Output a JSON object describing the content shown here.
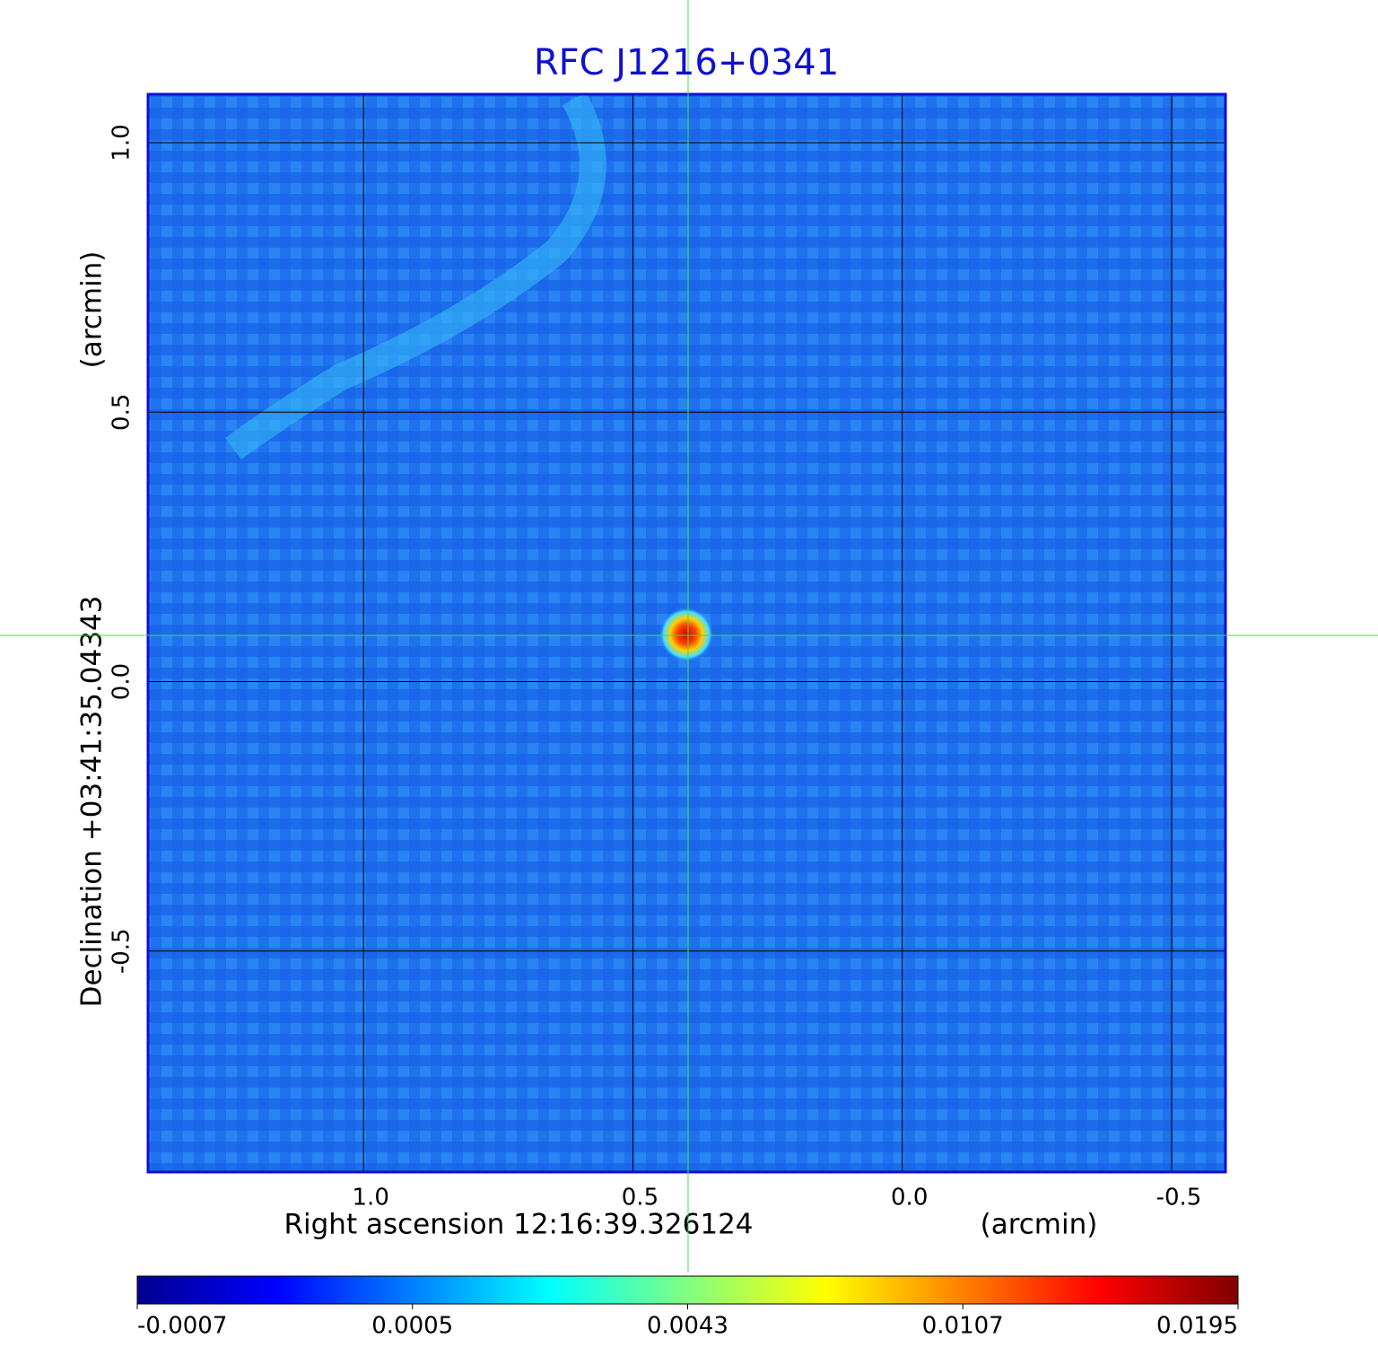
{
  "chart_data": {
    "type": "image",
    "title": "RFC J1216+0341",
    "xlabel": "Right ascension  12:16:39.326124",
    "xunit": "(arcmin)",
    "ylabel": "Declination  +03:41:35.04343",
    "yunit": "(arcmin)",
    "xlim": [
      1.4,
      -0.6
    ],
    "ylim": [
      -0.91,
      1.09
    ],
    "xticks": [
      {
        "value": 1,
        "label": "1.0"
      },
      0.5,
      {
        "value": 0,
        "label": "0.0"
      },
      -0.5
    ],
    "yticks": [
      {
        "value": 1,
        "label": "1.0"
      },
      0.5,
      {
        "value": 0,
        "label": "0.0"
      },
      -0.5
    ],
    "grid": true,
    "frame_color": "#1010d0",
    "colorbar": {
      "ticks": [
        -0.0007,
        0.0005,
        0.0043,
        0.0107,
        0.0195
      ],
      "colors": [
        "#00008f",
        "#0000ff",
        "#0080ff",
        "#00ffff",
        "#80ff80",
        "#ffff00",
        "#ff8000",
        "#ff0000",
        "#800000"
      ]
    }
  }
}
